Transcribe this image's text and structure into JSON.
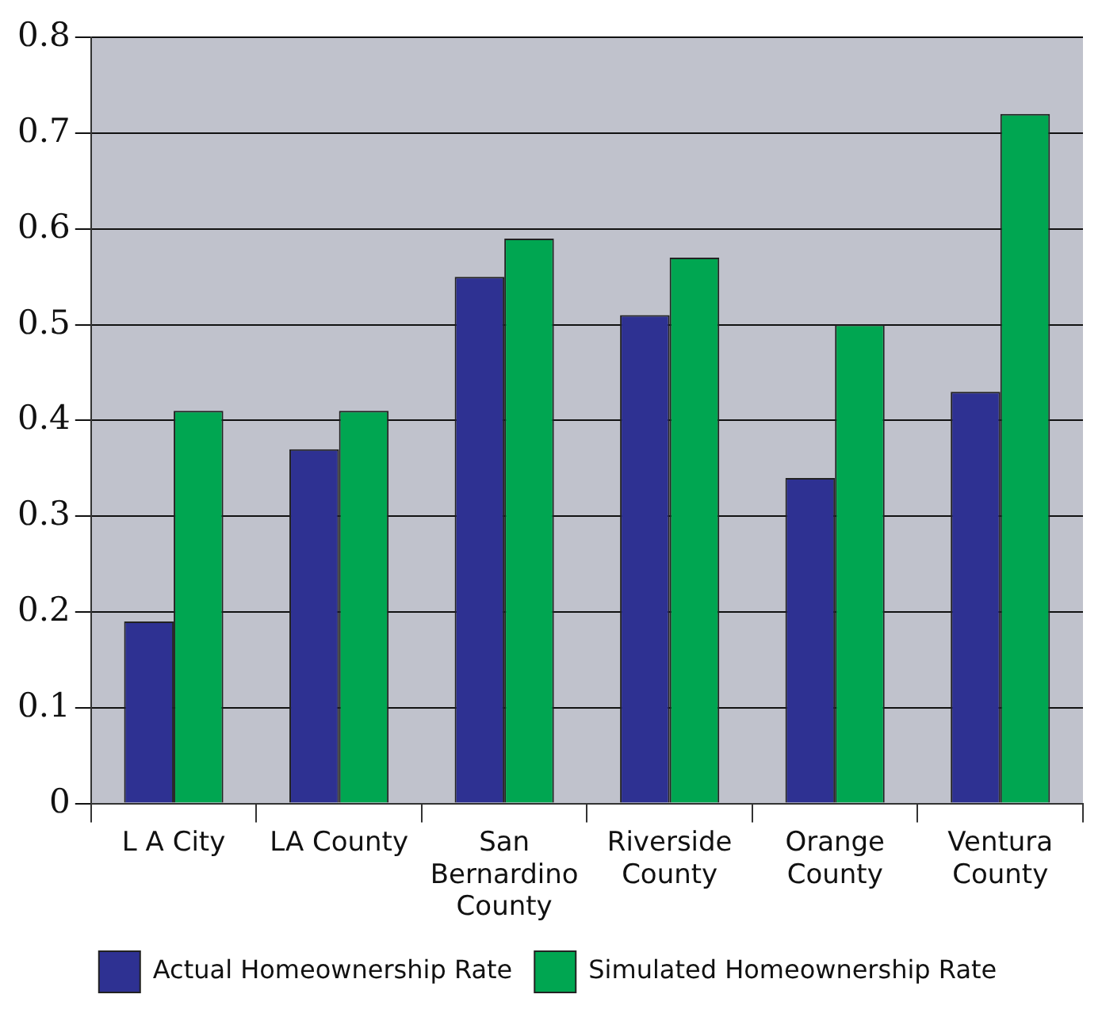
{
  "chart_data": {
    "type": "bar",
    "categories": [
      "L A City",
      "LA County",
      "San Bernardino County",
      "Riverside County",
      "Orange County",
      "Ventura County"
    ],
    "series": [
      {
        "name": "Actual Homeownership Rate",
        "color": "#2e3192",
        "values": [
          0.19,
          0.37,
          0.55,
          0.51,
          0.34,
          0.43
        ]
      },
      {
        "name": "Simulated Homeownership Rate",
        "color": "#00a651",
        "values": [
          0.41,
          0.41,
          0.59,
          0.57,
          0.5,
          0.72
        ]
      }
    ],
    "ylim": [
      0,
      0.8
    ],
    "yticks": [
      0,
      0.1,
      0.2,
      0.3,
      0.4,
      0.5,
      0.6,
      0.7,
      0.8
    ],
    "grid": "y",
    "legend": "bottom"
  }
}
